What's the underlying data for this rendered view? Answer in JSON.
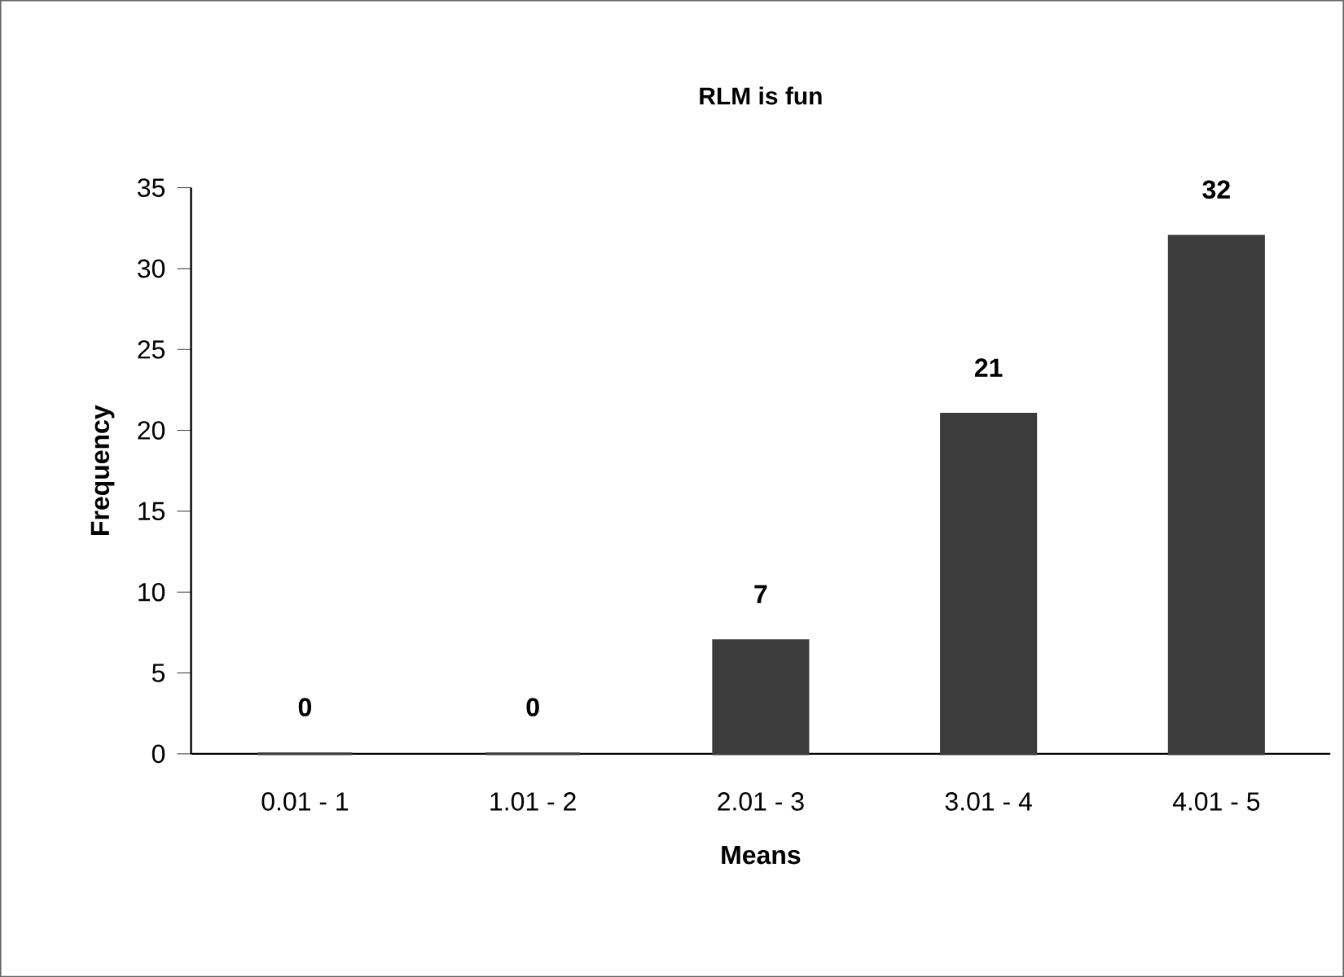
{
  "chart_data": {
    "type": "bar",
    "title": "RLM is fun",
    "xlabel": "Means",
    "ylabel": "Frequency",
    "categories": [
      "0.01 - 1",
      "1.01 - 2",
      "2.01 - 3",
      "3.01 - 4",
      "4.01 - 5"
    ],
    "values": [
      0,
      0,
      7,
      21,
      32
    ],
    "color": "#3c3c3c",
    "ylim": [
      0,
      35
    ],
    "yticks": [
      0,
      5,
      10,
      15,
      20,
      25,
      30,
      35
    ],
    "data_labels": true,
    "grid": false
  }
}
